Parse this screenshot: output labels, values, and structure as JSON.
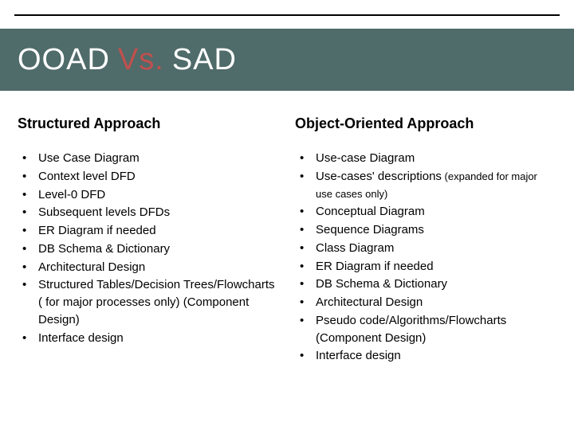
{
  "title": {
    "part1": "OOAD",
    "part2": "Vs.",
    "part3": "SAD"
  },
  "colors": {
    "title_bar_bg": "#4f6b6a",
    "title_text": "#ffffff",
    "title_accent": "#c0504d",
    "body_text": "#000000",
    "background": "#ffffff",
    "top_line": "#000000"
  },
  "left": {
    "heading": "Structured Approach",
    "items": [
      {
        "text": "Use Case Diagram"
      },
      {
        "text": "Context level DFD"
      },
      {
        "text": "Level-0 DFD"
      },
      {
        "text": "Subsequent levels DFDs"
      },
      {
        "text": "ER Diagram if needed"
      },
      {
        "text": "DB Schema & Dictionary"
      },
      {
        "text": "Architectural Design"
      },
      {
        "text": "Structured Tables/Decision Trees/Flowcharts ( for major processes only) (Component Design)"
      },
      {
        "text": "Interface design"
      }
    ]
  },
  "right": {
    "heading": "Object-Oriented  Approach",
    "items": [
      {
        "text": "Use-case Diagram"
      },
      {
        "text": "Use-cases' descriptions",
        "note": " (expanded for major use cases only)"
      },
      {
        "text": "Conceptual Diagram"
      },
      {
        "text": "Sequence Diagrams"
      },
      {
        "text": "Class Diagram"
      },
      {
        "text": "ER Diagram if needed"
      },
      {
        "text": "DB Schema & Dictionary"
      },
      {
        "text": "Architectural Design"
      },
      {
        "text": "Pseudo code/Algorithms/Flowcharts (Component Design)"
      },
      {
        "text": "Interface design"
      }
    ]
  }
}
